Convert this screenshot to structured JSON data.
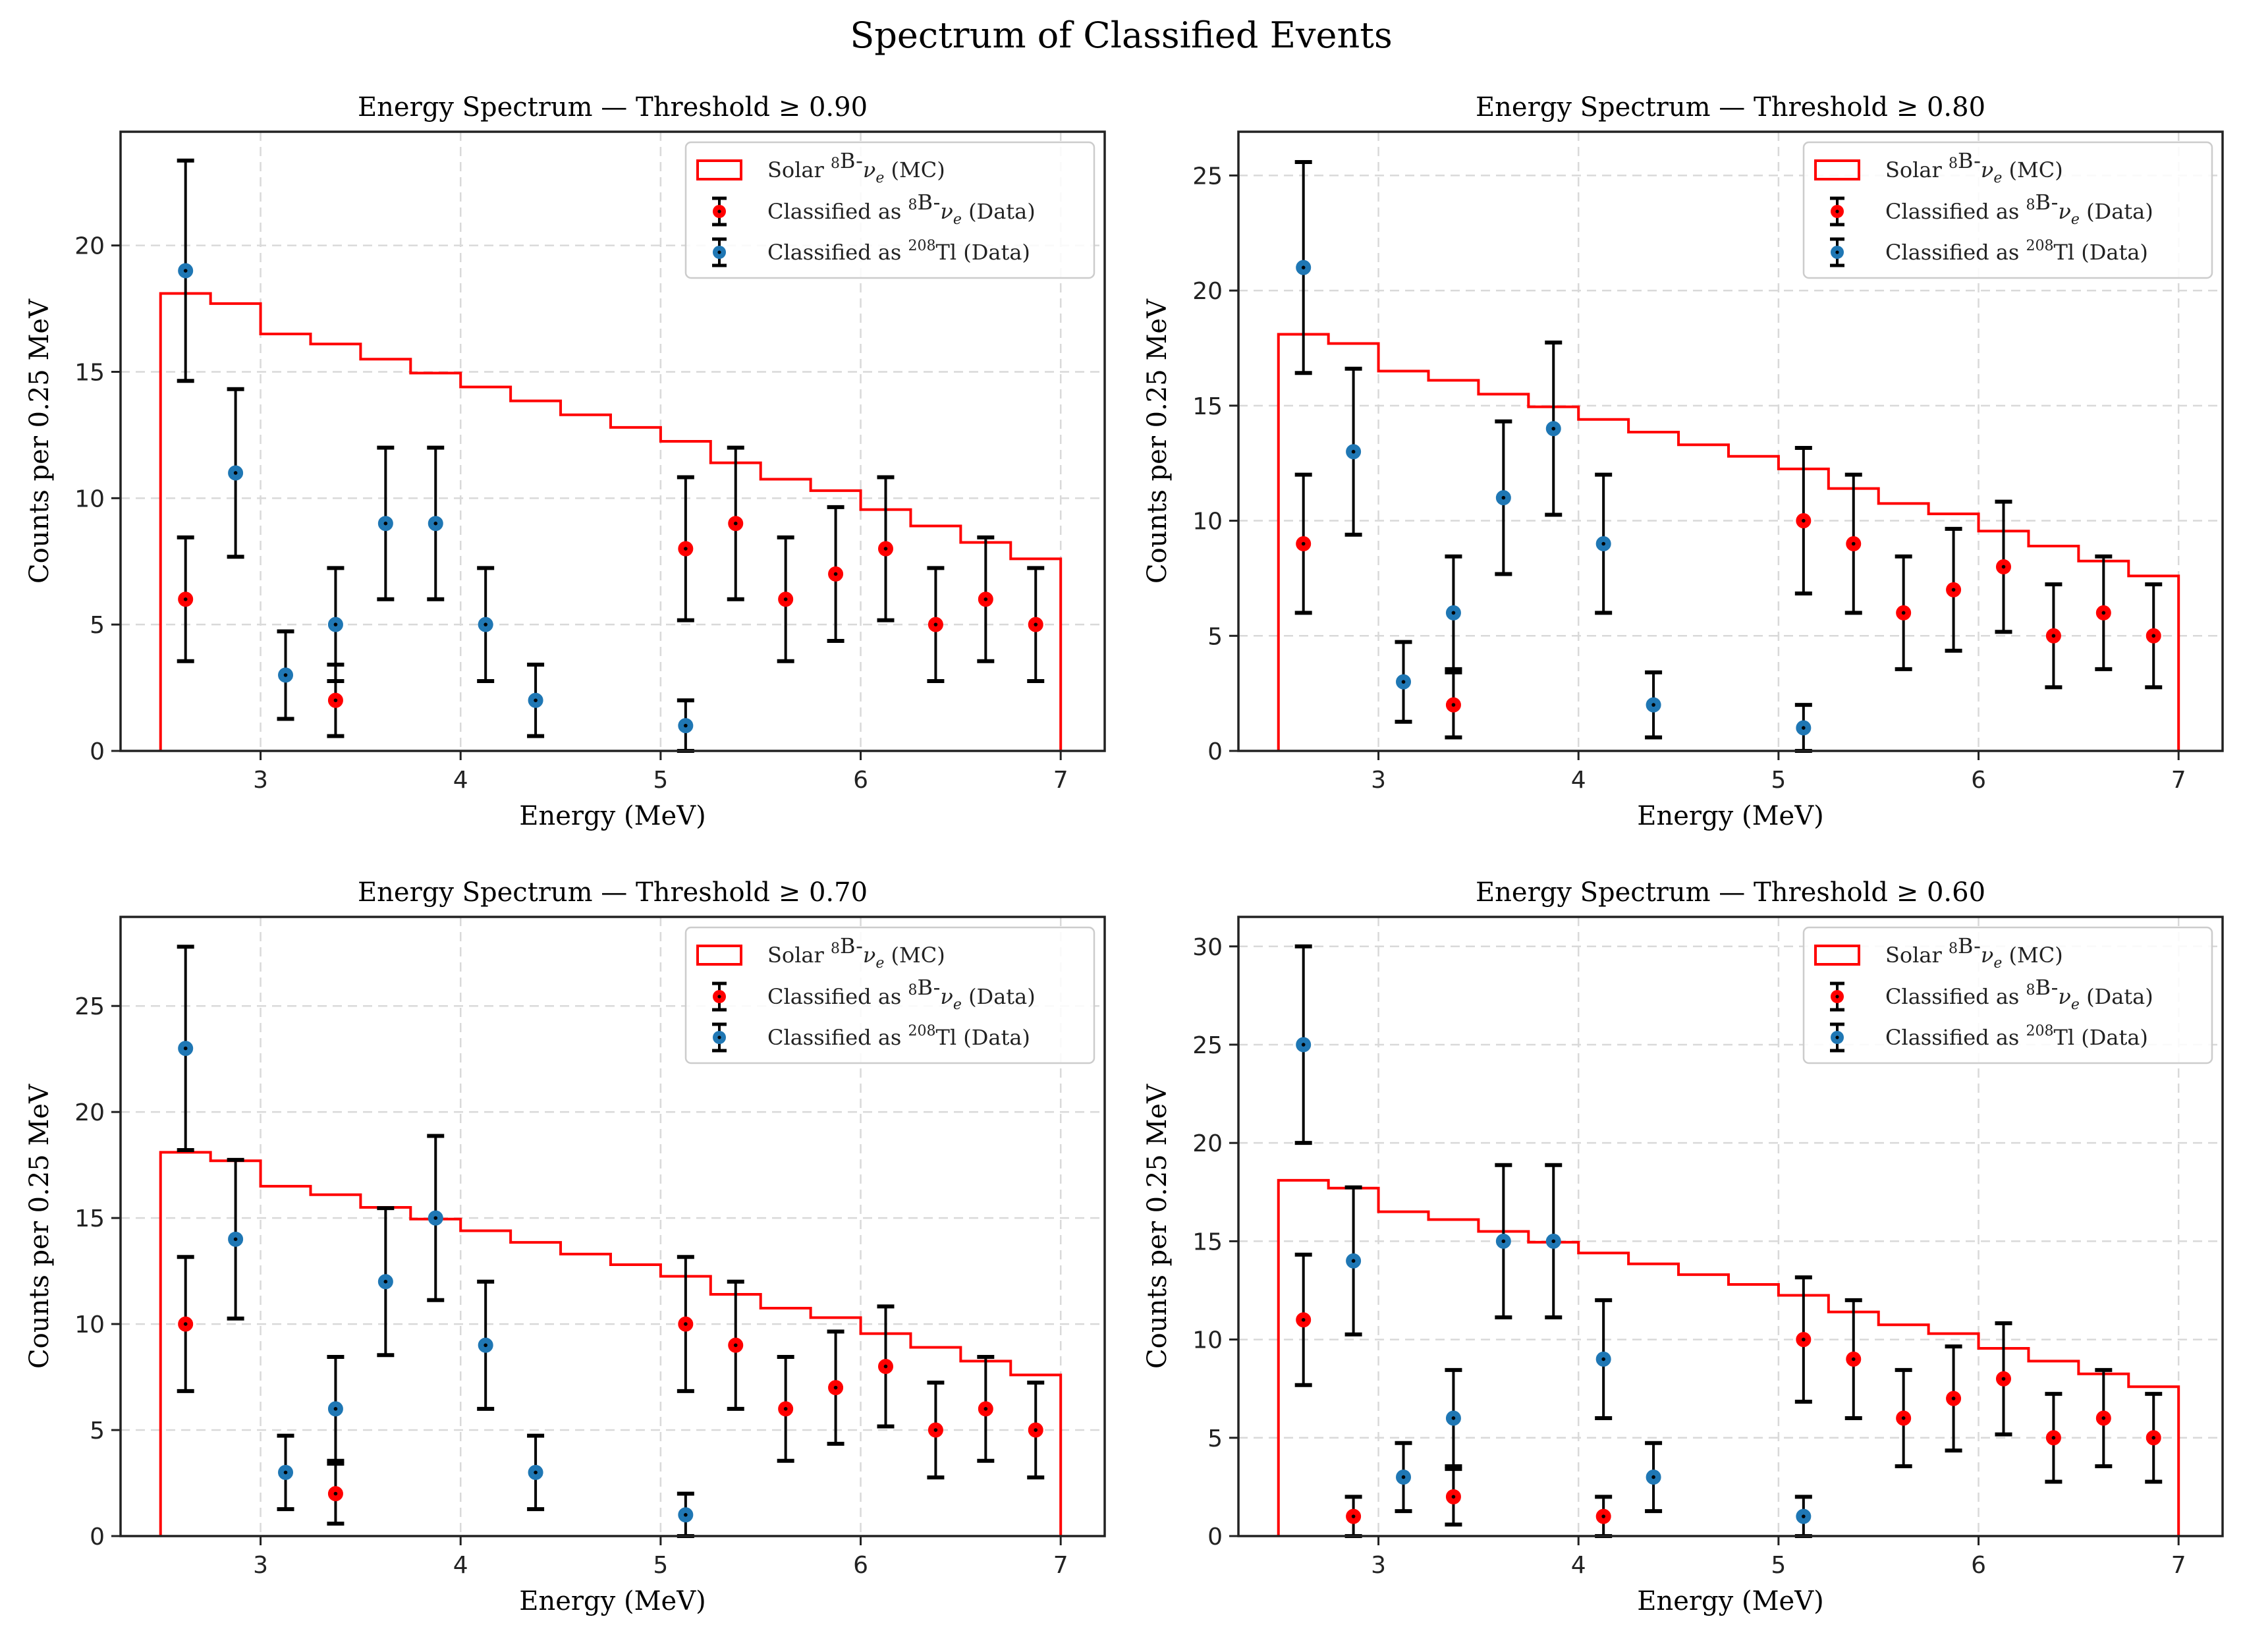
{
  "figure": {
    "suptitle": "Spectrum of Classified Events"
  },
  "legend": {
    "mc": {
      "pre": "Solar ",
      "sup": "8",
      "mid": "B-",
      "nu": "ν",
      "sub": "e",
      "post": " (MC)"
    },
    "b8": {
      "pre": "Classified as ",
      "sup": "8",
      "mid": "B-",
      "nu": "ν",
      "sub": "e",
      "post": " (Data)"
    },
    "tl": {
      "pre": "Classified as ",
      "sup": "208",
      "mid": "Tl",
      "post": " (Data)"
    }
  },
  "colors": {
    "mc_line": "#ff0000",
    "b8_marker": "#ff0000",
    "tl_marker": "#1f77b4",
    "errorbar": "#000000",
    "grid": "#d9d9d9",
    "axes": "#222222"
  },
  "chart_data": [
    {
      "type": "scatter",
      "title": "Energy Spectrum — Threshold ≥ 0.90",
      "xlabel": "Energy (MeV)",
      "ylabel": "Counts per 0.25 MeV",
      "xlim": [
        2.3,
        7.22
      ],
      "ylim": [
        0,
        24.5
      ],
      "xticks": [
        3,
        4,
        5,
        6,
        7
      ],
      "yticks": [
        0,
        5,
        10,
        15,
        20
      ],
      "legend_position": "upper right",
      "grid": true,
      "mc_histogram": {
        "bin_edges": [
          2.5,
          2.75,
          3.0,
          3.25,
          3.5,
          3.75,
          4.0,
          4.25,
          4.5,
          4.75,
          5.0,
          5.25,
          5.5,
          5.75,
          6.0,
          6.25,
          6.5,
          6.75,
          7.0
        ],
        "values": [
          18.1,
          17.7,
          16.5,
          16.1,
          15.5,
          14.95,
          14.4,
          13.85,
          13.3,
          12.8,
          12.25,
          11.4,
          10.75,
          10.3,
          9.55,
          8.9,
          8.25,
          7.6
        ]
      },
      "b8_data": {
        "x": [
          2.625,
          3.375,
          5.125,
          5.375,
          5.625,
          5.875,
          6.125,
          6.375,
          6.625,
          6.875
        ],
        "y": [
          6,
          2,
          8,
          9,
          6,
          7,
          8,
          5,
          6,
          5
        ]
      },
      "tl_data": {
        "x": [
          2.625,
          2.875,
          3.125,
          3.375,
          3.625,
          3.875,
          4.125,
          4.375,
          5.125
        ],
        "y": [
          19,
          11,
          3,
          5,
          9,
          9,
          5,
          2,
          1
        ]
      }
    },
    {
      "type": "scatter",
      "title": "Energy Spectrum — Threshold ≥ 0.80",
      "xlabel": "Energy (MeV)",
      "ylabel": "Counts per 0.25 MeV",
      "xlim": [
        2.3,
        7.22
      ],
      "ylim": [
        0,
        26.9
      ],
      "xticks": [
        3,
        4,
        5,
        6,
        7
      ],
      "yticks": [
        0,
        5,
        10,
        15,
        20,
        25
      ],
      "legend_position": "upper right",
      "grid": true,
      "mc_histogram": {
        "bin_edges": [
          2.5,
          2.75,
          3.0,
          3.25,
          3.5,
          3.75,
          4.0,
          4.25,
          4.5,
          4.75,
          5.0,
          5.25,
          5.5,
          5.75,
          6.0,
          6.25,
          6.5,
          6.75,
          7.0
        ],
        "values": [
          18.1,
          17.7,
          16.5,
          16.1,
          15.5,
          14.95,
          14.4,
          13.85,
          13.3,
          12.8,
          12.25,
          11.4,
          10.75,
          10.3,
          9.55,
          8.9,
          8.25,
          7.6
        ]
      },
      "b8_data": {
        "x": [
          2.625,
          3.375,
          5.125,
          5.375,
          5.625,
          5.875,
          6.125,
          6.375,
          6.625,
          6.875
        ],
        "y": [
          9,
          2,
          10,
          9,
          6,
          7,
          8,
          5,
          6,
          5
        ]
      },
      "tl_data": {
        "x": [
          2.625,
          2.875,
          3.125,
          3.375,
          3.625,
          3.875,
          4.125,
          4.375,
          5.125
        ],
        "y": [
          21,
          13,
          3,
          6,
          11,
          14,
          9,
          2,
          1
        ]
      }
    },
    {
      "type": "scatter",
      "title": "Energy Spectrum — Threshold ≥ 0.70",
      "xlabel": "Energy (MeV)",
      "ylabel": "Counts per 0.25 MeV",
      "xlim": [
        2.3,
        7.22
      ],
      "ylim": [
        0,
        29.2
      ],
      "xticks": [
        3,
        4,
        5,
        6,
        7
      ],
      "yticks": [
        0,
        5,
        10,
        15,
        20,
        25
      ],
      "legend_position": "upper right",
      "grid": true,
      "mc_histogram": {
        "bin_edges": [
          2.5,
          2.75,
          3.0,
          3.25,
          3.5,
          3.75,
          4.0,
          4.25,
          4.5,
          4.75,
          5.0,
          5.25,
          5.5,
          5.75,
          6.0,
          6.25,
          6.5,
          6.75,
          7.0
        ],
        "values": [
          18.1,
          17.7,
          16.5,
          16.1,
          15.5,
          14.95,
          14.4,
          13.85,
          13.3,
          12.8,
          12.25,
          11.4,
          10.75,
          10.3,
          9.55,
          8.9,
          8.25,
          7.6
        ]
      },
      "b8_data": {
        "x": [
          2.625,
          3.375,
          5.125,
          5.375,
          5.625,
          5.875,
          6.125,
          6.375,
          6.625,
          6.875
        ],
        "y": [
          10,
          2,
          10,
          9,
          6,
          7,
          8,
          5,
          6,
          5
        ]
      },
      "tl_data": {
        "x": [
          2.625,
          2.875,
          3.125,
          3.375,
          3.625,
          3.875,
          4.125,
          4.375,
          5.125
        ],
        "y": [
          23,
          14,
          3,
          6,
          12,
          15,
          9,
          3,
          1
        ]
      }
    },
    {
      "type": "scatter",
      "title": "Energy Spectrum — Threshold ≥ 0.60",
      "xlabel": "Energy (MeV)",
      "ylabel": "Counts per 0.25 MeV",
      "xlim": [
        2.3,
        7.22
      ],
      "ylim": [
        0,
        31.5
      ],
      "xticks": [
        3,
        4,
        5,
        6,
        7
      ],
      "yticks": [
        0,
        5,
        10,
        15,
        20,
        25,
        30
      ],
      "legend_position": "upper right",
      "grid": true,
      "mc_histogram": {
        "bin_edges": [
          2.5,
          2.75,
          3.0,
          3.25,
          3.5,
          3.75,
          4.0,
          4.25,
          4.5,
          4.75,
          5.0,
          5.25,
          5.5,
          5.75,
          6.0,
          6.25,
          6.5,
          6.75,
          7.0
        ],
        "values": [
          18.1,
          17.7,
          16.5,
          16.1,
          15.5,
          14.95,
          14.4,
          13.85,
          13.3,
          12.8,
          12.25,
          11.4,
          10.75,
          10.3,
          9.55,
          8.9,
          8.25,
          7.6
        ]
      },
      "b8_data": {
        "x": [
          2.625,
          2.875,
          3.375,
          4.125,
          5.125,
          5.375,
          5.625,
          5.875,
          6.125,
          6.375,
          6.625,
          6.875
        ],
        "y": [
          11,
          1,
          2,
          1,
          10,
          9,
          6,
          7,
          8,
          5,
          6,
          5
        ]
      },
      "tl_data": {
        "x": [
          2.625,
          2.875,
          3.125,
          3.375,
          3.625,
          3.875,
          4.125,
          4.375,
          5.125
        ],
        "y": [
          25,
          14,
          3,
          6,
          15,
          15,
          9,
          3,
          1
        ]
      }
    }
  ]
}
